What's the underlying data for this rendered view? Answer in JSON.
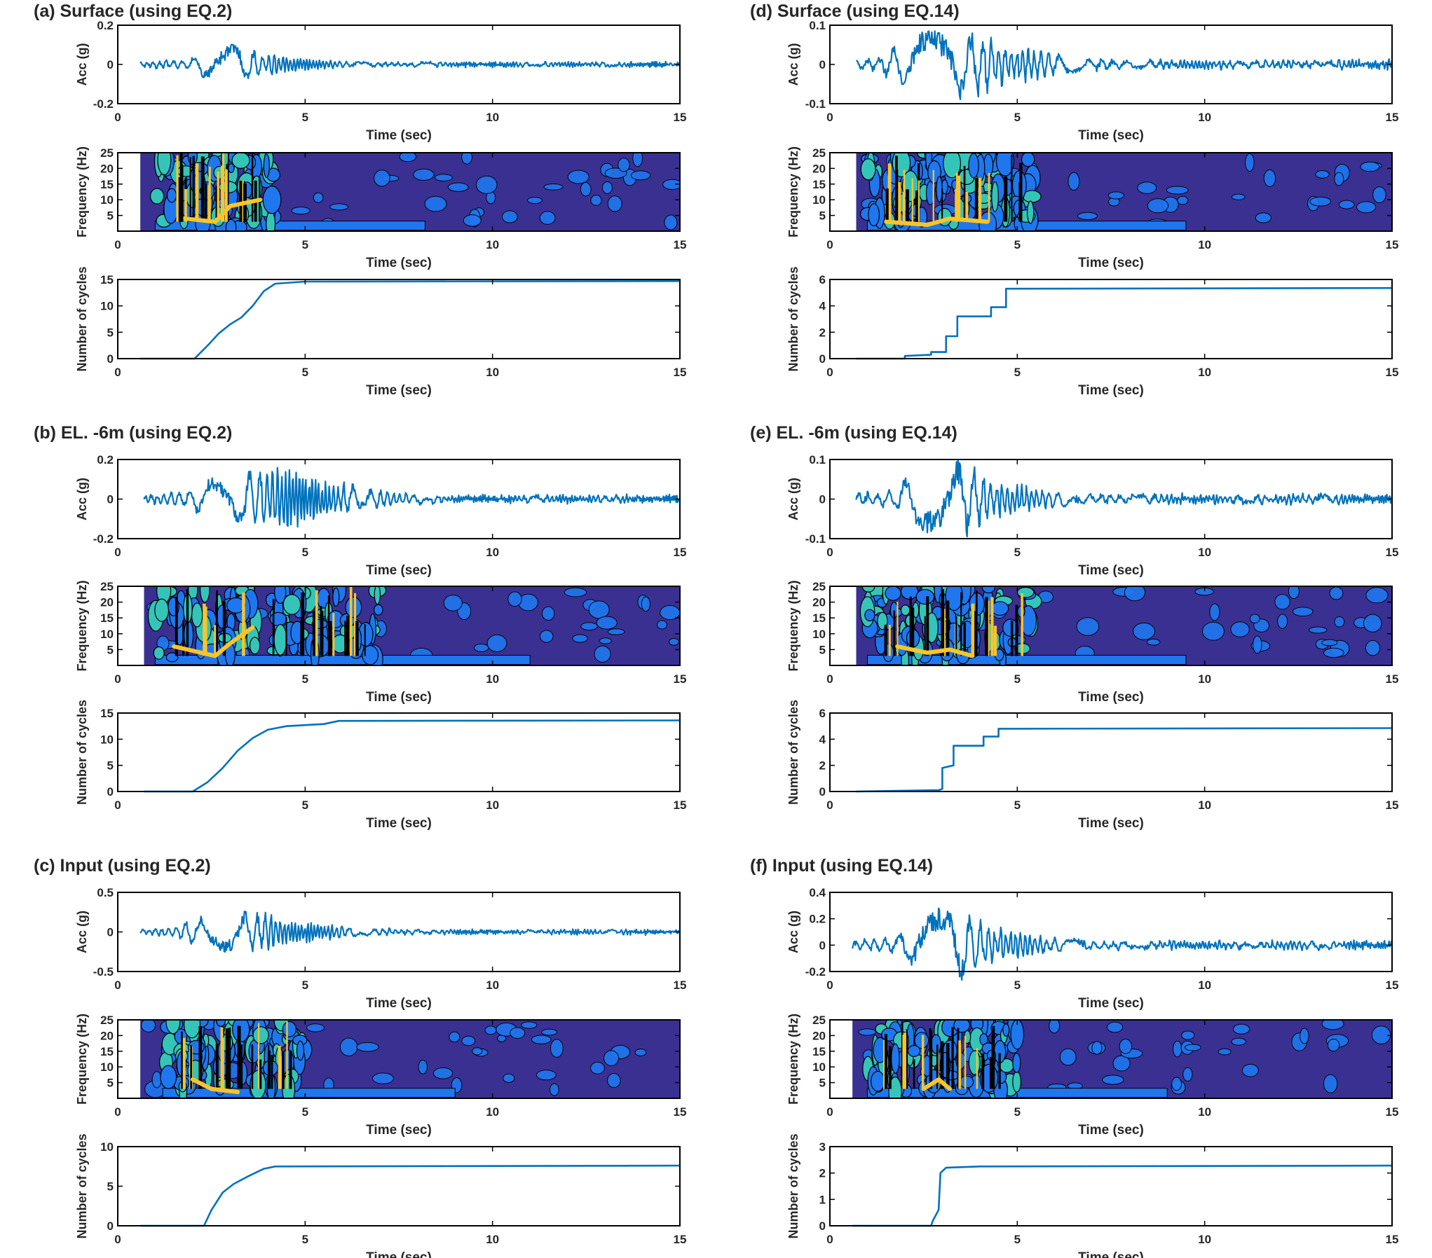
{
  "chart_data": {
    "type": "line",
    "layout": "grid of 6 panel groups (3 rows x 2 columns); each group has an acceleration time history, a wavelet frequency contour map and a cumulative number-of-cycles curve",
    "colors": {
      "line": "#0072BD",
      "background_map": "#3A3092",
      "contour_blue": "#1F77F0",
      "contour_cyan": "#35C4B8",
      "contour_yellow": "#F7C52A",
      "contour_black": "#000000"
    },
    "x_label": "Time (sec)",
    "x_ticks": [
      "0",
      "5",
      "10",
      "15"
    ],
    "xlim": [
      0,
      15
    ],
    "freq_label": "Frequency (Hz)",
    "freq_ticks": [
      "5",
      "10",
      "15",
      "20",
      "25"
    ],
    "freq_lim": [
      0,
      25
    ],
    "groups": [
      {
        "id": "a",
        "title": "(a) Surface (using EQ.2)",
        "acc": {
          "ylabel": "Acc (g)",
          "ylim": [
            -0.2,
            0.2
          ],
          "yticks": [
            "-0.2",
            "0",
            "0.2"
          ],
          "start": 0.6,
          "peak": 0.1,
          "burst": [
            1.9,
            4.0
          ],
          "freq": 4.5
        },
        "freq_map": {
          "start": 0.6,
          "active": [
            1.0,
            4.2
          ],
          "yellow_ridge": [
            [
              1.8,
              4
            ],
            [
              2.6,
              3
            ],
            [
              3.0,
              8
            ],
            [
              3.8,
              10
            ]
          ]
        },
        "cycles": {
          "ylabel": "Number of cycles",
          "ylim": [
            0,
            15
          ],
          "yticks": [
            "0",
            "5",
            "10",
            "15"
          ],
          "points": [
            [
              0.6,
              0
            ],
            [
              2.05,
              0
            ],
            [
              2.4,
              2.5
            ],
            [
              2.7,
              4.8
            ],
            [
              3.0,
              6.5
            ],
            [
              3.3,
              7.8
            ],
            [
              3.6,
              10.0
            ],
            [
              3.9,
              12.8
            ],
            [
              4.2,
              14.2
            ],
            [
              5.0,
              14.6
            ],
            [
              15,
              14.7
            ]
          ]
        }
      },
      {
        "id": "d",
        "title": "(d) Surface (using EQ.14)",
        "acc": {
          "ylabel": "Acc (g)",
          "ylim": [
            -0.1,
            0.1
          ],
          "yticks": [
            "-0.1",
            "0",
            "0.1"
          ],
          "start": 0.7,
          "peak": 0.088,
          "burst": [
            1.5,
            5.0
          ],
          "freq": 2.5
        },
        "freq_map": {
          "start": 0.7,
          "active": [
            1.0,
            5.5
          ],
          "yellow_ridge": [
            [
              1.5,
              3
            ],
            [
              2.6,
              2
            ],
            [
              3.2,
              4
            ],
            [
              4.2,
              3
            ]
          ]
        },
        "cycles": {
          "ylabel": "Number of cycles",
          "ylim": [
            0,
            6
          ],
          "yticks": [
            "0",
            "2",
            "4",
            "6"
          ],
          "points": [
            [
              0.7,
              0
            ],
            [
              2.0,
              0
            ],
            [
              2.0,
              0.2
            ],
            [
              2.7,
              0.3
            ],
            [
              2.7,
              0.5
            ],
            [
              3.1,
              0.5
            ],
            [
              3.1,
              1.7
            ],
            [
              3.4,
              1.7
            ],
            [
              3.4,
              3.2
            ],
            [
              4.3,
              3.2
            ],
            [
              4.3,
              3.9
            ],
            [
              4.7,
              3.9
            ],
            [
              4.7,
              5.3
            ],
            [
              15,
              5.35
            ]
          ]
        }
      },
      {
        "id": "b",
        "title": "(b) EL. -6m (using EQ.2)",
        "acc": {
          "ylabel": "Acc (g)",
          "ylim": [
            -0.2,
            0.2
          ],
          "yticks": [
            "-0.2",
            "0",
            "0.2"
          ],
          "start": 0.7,
          "peak": 0.15,
          "burst": [
            1.9,
            6.0
          ],
          "freq": 4.5
        },
        "freq_map": {
          "start": 0.7,
          "active": [
            1.0,
            7.0
          ],
          "yellow_ridge": [
            [
              1.5,
              6
            ],
            [
              2.6,
              3
            ],
            [
              3.0,
              7
            ],
            [
              3.6,
              12
            ]
          ]
        },
        "cycles": {
          "ylabel": "Number of cycles",
          "ylim": [
            0,
            15
          ],
          "yticks": [
            "0",
            "5",
            "10",
            "15"
          ],
          "points": [
            [
              0.7,
              0
            ],
            [
              2.0,
              0
            ],
            [
              2.4,
              1.8
            ],
            [
              2.8,
              4.5
            ],
            [
              3.2,
              7.8
            ],
            [
              3.6,
              10.2
            ],
            [
              4.0,
              11.8
            ],
            [
              4.5,
              12.5
            ],
            [
              5.5,
              12.9
            ],
            [
              5.9,
              13.5
            ],
            [
              15,
              13.6
            ]
          ]
        }
      },
      {
        "id": "e",
        "title": "(e) EL. -6m (using EQ.14)",
        "acc": {
          "ylabel": "Acc (g)",
          "ylim": [
            -0.1,
            0.1
          ],
          "yticks": [
            "-0.1",
            "0",
            "0.1"
          ],
          "start": 0.7,
          "peak": 0.095,
          "burst": [
            1.8,
            4.5
          ],
          "freq": 3.0
        },
        "freq_map": {
          "start": 0.7,
          "active": [
            1.0,
            5.5
          ],
          "yellow_ridge": [
            [
              1.8,
              6
            ],
            [
              2.6,
              4
            ],
            [
              3.2,
              5
            ],
            [
              3.8,
              3
            ]
          ]
        },
        "cycles": {
          "ylabel": "Number of cycles",
          "ylim": [
            0,
            6
          ],
          "yticks": [
            "0",
            "2",
            "4",
            "6"
          ],
          "points": [
            [
              0.7,
              0
            ],
            [
              2.9,
              0.1
            ],
            [
              3.0,
              0.2
            ],
            [
              3.0,
              1.8
            ],
            [
              3.3,
              2.0
            ],
            [
              3.3,
              3.5
            ],
            [
              4.1,
              3.5
            ],
            [
              4.1,
              4.2
            ],
            [
              4.5,
              4.2
            ],
            [
              4.5,
              4.8
            ],
            [
              15,
              4.85
            ]
          ]
        }
      },
      {
        "id": "c",
        "title": "(c) Input (using EQ.2)",
        "acc": {
          "ylabel": "Acc (g)",
          "ylim": [
            -0.5,
            0.5
          ],
          "yticks": [
            "-0.5",
            "0",
            "0.5"
          ],
          "start": 0.6,
          "peak": 0.25,
          "burst": [
            1.6,
            5.0
          ],
          "freq": 4.5
        },
        "freq_map": {
          "start": 0.6,
          "active": [
            1.2,
            5.0
          ],
          "yellow_ridge": [
            [
              2.0,
              6
            ],
            [
              2.5,
              3
            ],
            [
              3.2,
              2
            ]
          ]
        },
        "cycles": {
          "ylabel": "Number of cycles",
          "ylim": [
            0,
            10
          ],
          "yticks": [
            "0",
            "5",
            "10"
          ],
          "points": [
            [
              0.6,
              0
            ],
            [
              2.3,
              0
            ],
            [
              2.5,
              2.0
            ],
            [
              2.8,
              4.2
            ],
            [
              3.1,
              5.3
            ],
            [
              3.5,
              6.3
            ],
            [
              3.9,
              7.2
            ],
            [
              4.2,
              7.5
            ],
            [
              15,
              7.6
            ]
          ]
        }
      },
      {
        "id": "f",
        "title": "(f) Input (using EQ.14)",
        "acc": {
          "ylabel": "Acc (g)",
          "ylim": [
            -0.2,
            0.4
          ],
          "yticks": [
            "-0.2",
            "0",
            "0.2",
            "0.4"
          ],
          "start": 0.6,
          "peak": 0.26,
          "burst": [
            1.8,
            4.5
          ],
          "freq": 3.0
        },
        "freq_map": {
          "start": 0.6,
          "active": [
            1.0,
            5.0
          ],
          "yellow_ridge": [
            [
              2.5,
              3
            ],
            [
              2.9,
              6
            ],
            [
              3.2,
              3
            ]
          ]
        },
        "cycles": {
          "ylabel": "Number of cycles",
          "ylim": [
            0,
            3
          ],
          "yticks": [
            "0",
            "1",
            "2",
            "3"
          ],
          "points": [
            [
              0.6,
              0
            ],
            [
              2.7,
              0
            ],
            [
              2.75,
              0.2
            ],
            [
              2.9,
              0.6
            ],
            [
              2.95,
              2.0
            ],
            [
              3.1,
              2.2
            ],
            [
              4.0,
              2.25
            ],
            [
              15,
              2.28
            ]
          ]
        }
      }
    ]
  }
}
